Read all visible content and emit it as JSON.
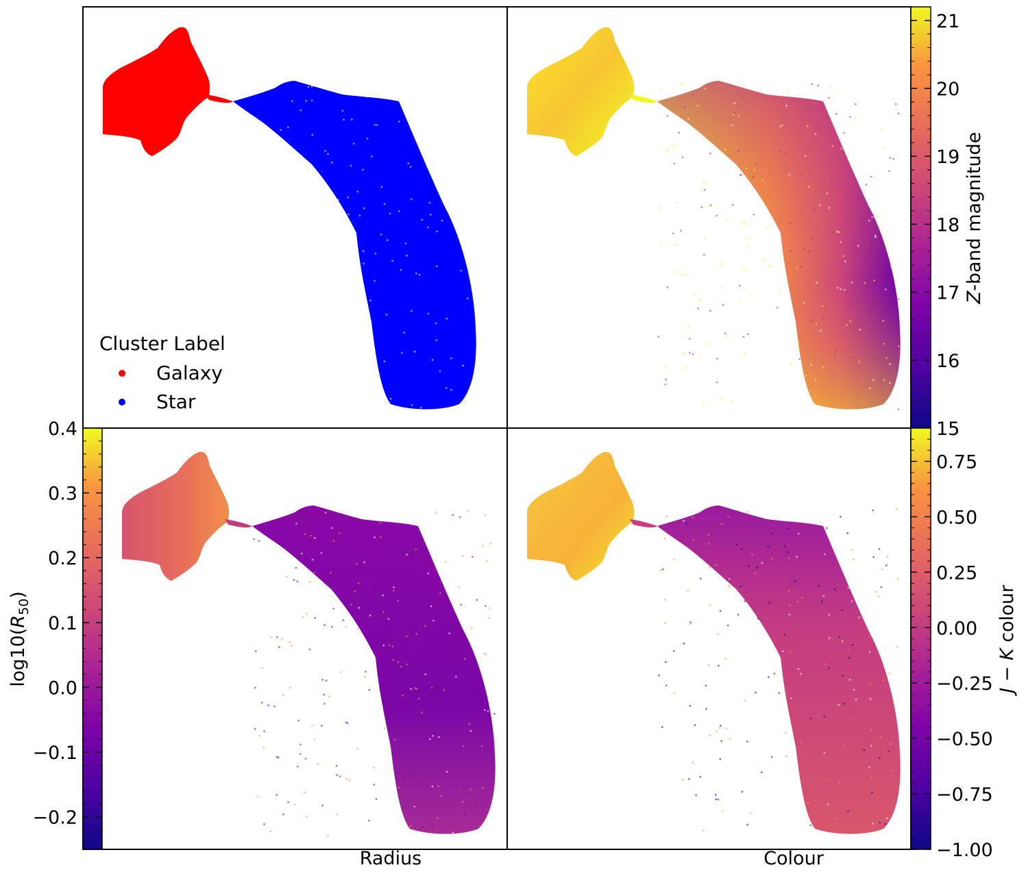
{
  "chart_data": [
    {
      "type": "scatter",
      "panel": "top-left",
      "title": "",
      "xlabel": "",
      "ylabel": "",
      "legend": {
        "title": "Cluster Label",
        "placement": "bottom-left",
        "entries": [
          {
            "label": "Galaxy",
            "color": "#ff0000"
          },
          {
            "label": "Star",
            "color": "#0000ff"
          }
        ]
      },
      "series": [
        {
          "name": "Galaxy",
          "color": "#ff0000",
          "region": "upper-left compact clump"
        },
        {
          "name": "Star",
          "color": "#0000ff",
          "region": "elongated arm extending right and down"
        }
      ]
    },
    {
      "type": "scatter",
      "panel": "top-right",
      "color_by": "Z-band magnitude",
      "colorbar": {
        "label": "Z-band magnitude",
        "label_italic_part": "Z",
        "label_rest": "-band magnitude",
        "range": [
          15,
          21.2
        ],
        "ticks": [
          "15",
          "16",
          "17",
          "18",
          "19",
          "20",
          "21"
        ],
        "tick_values": [
          15,
          16,
          17,
          18,
          19,
          20,
          21
        ],
        "cmap": "plasma",
        "placement": "right"
      }
    },
    {
      "type": "scatter",
      "panel": "bottom-left",
      "color_by": "log10(R50)",
      "xlabel": "Radius",
      "colorbar": {
        "label": "log10(R50)",
        "label_main": "log10(",
        "label_sym": "R",
        "label_sub": "50",
        "label_close": ")",
        "range": [
          -0.25,
          0.4
        ],
        "ticks": [
          "0.4",
          "0.3",
          "0.2",
          "0.1",
          "0.0",
          "−0.1",
          "−0.2"
        ],
        "tick_values": [
          0.4,
          0.3,
          0.2,
          0.1,
          0.0,
          -0.1,
          -0.2
        ],
        "cmap": "plasma",
        "placement": "left"
      }
    },
    {
      "type": "scatter",
      "panel": "bottom-right",
      "color_by": "J − K colour",
      "xlabel": "Colour",
      "colorbar": {
        "label": "J − K colour",
        "label_j": "J",
        "label_minus": " − ",
        "label_k": "K",
        "label_rest": " colour",
        "range": [
          -1.0,
          0.9
        ],
        "ticks": [
          "0.75",
          "0.50",
          "0.25",
          "0.00",
          "−0.25",
          "−0.50",
          "−0.75",
          "−1.00"
        ],
        "tick_values": [
          0.75,
          0.5,
          0.25,
          0.0,
          -0.25,
          -0.5,
          -0.75,
          -1.0
        ],
        "cmap": "plasma",
        "placement": "right"
      }
    }
  ]
}
